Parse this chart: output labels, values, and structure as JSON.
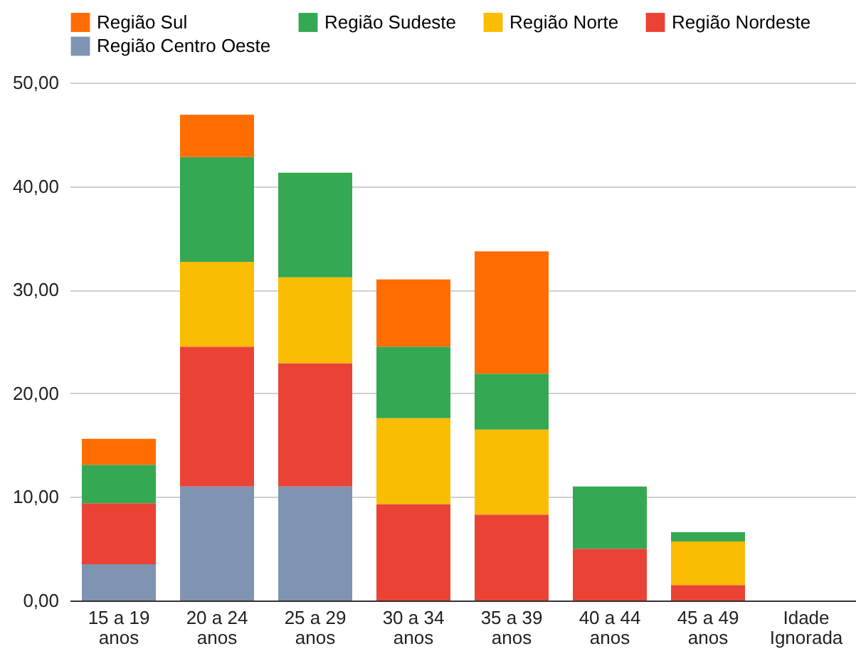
{
  "chart_data": {
    "type": "bar",
    "stacked": true,
    "categories": [
      "15 a 19 anos",
      "20 a 24 anos",
      "25 a 29 anos",
      "30 a 34 anos",
      "35 a 39 anos",
      "40 a 44 anos",
      "45 a 49 anos",
      "Idade Ignorada"
    ],
    "series": [
      {
        "name": "Região Centro Oeste",
        "color": "#7f93b2",
        "values": [
          3.5,
          11.0,
          11.0,
          null,
          null,
          null,
          null,
          null
        ]
      },
      {
        "name": "Região Nordeste",
        "color": "#ea4335",
        "values": [
          5.9,
          13.5,
          11.9,
          9.3,
          8.3,
          5.0,
          1.5,
          null
        ]
      },
      {
        "name": "Região Norte",
        "color": "#fbbc04",
        "values": [
          null,
          8.2,
          8.3,
          8.3,
          8.2,
          null,
          4.2,
          null
        ]
      },
      {
        "name": "Região Sudeste",
        "color": "#34a853",
        "values": [
          3.7,
          10.1,
          10.1,
          6.9,
          5.4,
          6.0,
          0.9,
          null
        ]
      },
      {
        "name": "Região Sul",
        "color": "#ff6d01",
        "values": [
          2.5,
          4.1,
          null,
          6.5,
          11.8,
          null,
          null,
          null
        ]
      }
    ],
    "ylim": [
      0,
      50
    ],
    "yticks": [
      {
        "value": 0,
        "label": "0,00"
      },
      {
        "value": 10,
        "label": "10,00"
      },
      {
        "value": 20,
        "label": "20,00"
      },
      {
        "value": 30,
        "label": "30,00"
      },
      {
        "value": 40,
        "label": "40,00"
      },
      {
        "value": 50,
        "label": "50,00"
      }
    ],
    "grid": "y",
    "legend": "top"
  }
}
